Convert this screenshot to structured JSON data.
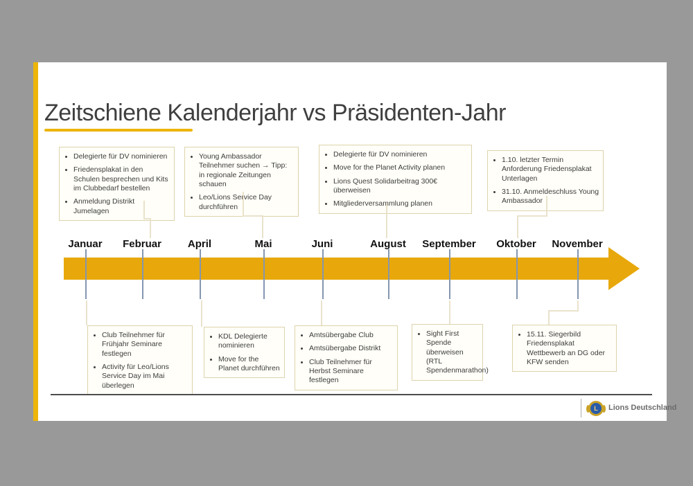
{
  "background_color": "#999999",
  "slide": {
    "title": "Zeitschiene Kalenderjahr vs Präsidenten-Jahr",
    "accent_color": "#EDB50A",
    "timeline": {
      "bar_color": "#E8A80B",
      "tick_color": "#8496B0",
      "months": [
        "Januar",
        "Februar",
        "April",
        "Mai",
        "Juni",
        "August",
        "September",
        "Oktober",
        "November"
      ]
    },
    "top_boxes": [
      {
        "items": [
          "Delegierte für DV nominieren",
          "Friedensplakat in den Schulen besprechen und Kits im Clubbedarf bestellen",
          "Anmeldung Distrikt Jumelagen"
        ]
      },
      {
        "items": [
          "Young Ambassador Teilnehmer suchen →  Tipp: in regionale Zeitungen schauen",
          "Leo/Lions Service Day durchführen"
        ]
      },
      {
        "items": [
          "Delegierte für DV nominieren",
          "Move for the Planet Activity planen",
          "Lions Quest Solidarbeitrag 300€ überweisen",
          "Mitgliederversammlung planen"
        ]
      },
      {
        "items": [
          "1.10. letzter Termin Anforderung Friedensplakat Unterlagen",
          "31.10. Anmeldeschluss Young Ambassador"
        ]
      }
    ],
    "bottom_boxes": [
      {
        "items": [
          "Club Teilnehmer für Frühjahr Seminare festlegen",
          "Activity für Leo/Lions Service Day im Mai überlegen"
        ]
      },
      {
        "items": [
          "KDL Delegierte nominieren",
          "Move for the Planet durchführen"
        ]
      },
      {
        "items": [
          "Amtsübergabe Club",
          "Amtsübergabe Distrikt",
          "Club Teilnehmer für Herbst Seminare festlegen"
        ]
      },
      {
        "items": [
          "Sight First Spende überweisen (RTL Spendenmarathon)"
        ]
      },
      {
        "items": [
          "15.11. Siegerbild Friedensplakat Wettbewerb an DG oder KFW senden"
        ]
      }
    ],
    "footer": {
      "brand": "Lions Deutschland",
      "logo_letter": "L"
    }
  }
}
